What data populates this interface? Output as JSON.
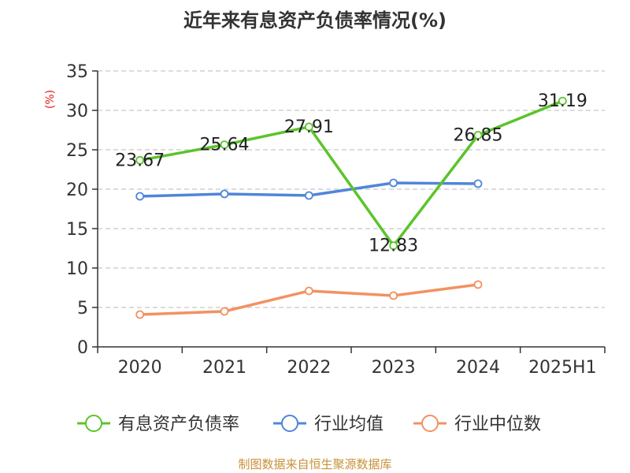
{
  "title": "近年来有息资产负债率情况(%)",
  "source": "制图数据来自恒生聚源数据库",
  "chart_data": {
    "type": "line",
    "title": "近年来有息资产负债率情况(%)",
    "ylabel": "(%)",
    "xlabel": "",
    "categories": [
      "2020",
      "2021",
      "2022",
      "2023",
      "2024",
      "2025H1"
    ],
    "ylim": [
      0,
      35
    ],
    "yticks": [
      0,
      5,
      10,
      15,
      20,
      25,
      30,
      35
    ],
    "grid": "horizontal-dashed",
    "legend_position": "bottom",
    "series": [
      {
        "name": "有息资产负债率",
        "color": "#5bc42b",
        "values": [
          23.67,
          25.64,
          27.91,
          12.83,
          26.85,
          31.19
        ],
        "labels": [
          "23.67",
          "25.64",
          "27.91",
          "12.83",
          "26.85",
          "31.19"
        ]
      },
      {
        "name": "行业均值",
        "color": "#4f86d9",
        "values": [
          19.1,
          19.4,
          19.2,
          20.8,
          20.7,
          null
        ]
      },
      {
        "name": "行业中位数",
        "color": "#f29262",
        "values": [
          4.1,
          4.5,
          7.1,
          6.5,
          7.9,
          null
        ]
      }
    ]
  }
}
